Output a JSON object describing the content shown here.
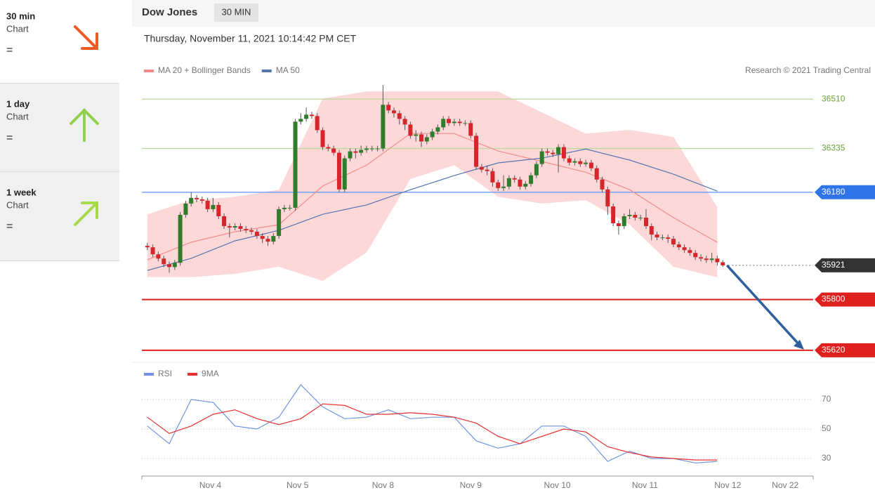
{
  "sidebar": [
    {
      "period": "30 min",
      "label": "Chart",
      "status": "="
    },
    {
      "period": "1 day",
      "label": "Chart",
      "status": "="
    },
    {
      "period": "1 week",
      "label": "Chart",
      "status": "="
    }
  ],
  "header": {
    "title": "Dow Jones",
    "badge": "30 MIN",
    "timestamp": "Thursday, November 11, 2021 10:14:42 PM CET"
  },
  "chart_data": [
    {
      "type": "candlestick",
      "credit": "Research © 2021 Trading Central",
      "xlim": [
        -1,
        121.5
      ],
      "ylim": [
        35580,
        36590
      ],
      "up_color": "#2f7d2b",
      "down_color": "#d7262b",
      "x": [
        0,
        1,
        2,
        3,
        4,
        5,
        6,
        7,
        8,
        9,
        10,
        11,
        12,
        13,
        14,
        15,
        16,
        17,
        18,
        19,
        20,
        21,
        22,
        23,
        24,
        25,
        26,
        27,
        28,
        29,
        30,
        31,
        32,
        33,
        34,
        35,
        36,
        37,
        38,
        39,
        40,
        41,
        42,
        43,
        44,
        45,
        46,
        47,
        48,
        49,
        50,
        51,
        52,
        53,
        54,
        55,
        56,
        57,
        58,
        59,
        60,
        61,
        62,
        63,
        64,
        65,
        66,
        67,
        68,
        69,
        70,
        71,
        72,
        73,
        74,
        75,
        76,
        77,
        78,
        79,
        80,
        81,
        82,
        83,
        84,
        85,
        86,
        87,
        88,
        89,
        90,
        91,
        92,
        93,
        94,
        95,
        96,
        97,
        98,
        99,
        100,
        101,
        102,
        103,
        104,
        105
      ],
      "open": [
        35990,
        35985,
        35960,
        35945,
        35925,
        35915,
        35930,
        36100,
        36140,
        36160,
        36155,
        36150,
        36120,
        36135,
        36095,
        36060,
        36055,
        36060,
        36050,
        36045,
        36040,
        36025,
        36015,
        36005,
        36025,
        36120,
        36125,
        36125,
        36430,
        36440,
        36455,
        36450,
        36400,
        36340,
        36335,
        36320,
        36190,
        36300,
        36325,
        36320,
        36330,
        36335,
        36335,
        36335,
        36490,
        36470,
        36460,
        36440,
        36420,
        36380,
        36385,
        36360,
        36375,
        36395,
        36410,
        36440,
        36425,
        36430,
        36425,
        36425,
        36380,
        36270,
        36260,
        36255,
        36215,
        36195,
        36200,
        36230,
        36225,
        36200,
        36210,
        36240,
        36280,
        36325,
        36320,
        36315,
        36340,
        36300,
        36285,
        36290,
        36280,
        36285,
        36265,
        36225,
        36190,
        36130,
        36070,
        36060,
        36095,
        36100,
        36090,
        36090,
        36060,
        36030,
        36020,
        36020,
        36015,
        35995,
        35985,
        35975,
        35965,
        35950,
        35945,
        35940,
        35945,
        35932
      ],
      "high": [
        36000,
        35995,
        35970,
        35955,
        35935,
        35940,
        36110,
        36150,
        36180,
        36170,
        36165,
        36160,
        36160,
        36145,
        36105,
        36070,
        36070,
        36070,
        36060,
        36055,
        36050,
        36035,
        36025,
        36035,
        36130,
        36135,
        36135,
        36440,
        36460,
        36480,
        36465,
        36460,
        36410,
        36350,
        36345,
        36330,
        36310,
        36335,
        36335,
        36345,
        36345,
        36345,
        36345,
        36560,
        36500,
        36480,
        36470,
        36450,
        36430,
        36400,
        36395,
        36385,
        36405,
        36420,
        36450,
        36450,
        36440,
        36440,
        36435,
        36435,
        36390,
        36280,
        36275,
        36265,
        36225,
        36240,
        36240,
        36240,
        36235,
        36220,
        36250,
        36290,
        36335,
        36335,
        36330,
        36350,
        36350,
        36310,
        36300,
        36300,
        36295,
        36295,
        36275,
        36235,
        36200,
        36140,
        36080,
        36105,
        36120,
        36110,
        36100,
        36120,
        36070,
        36040,
        36030,
        36030,
        36025,
        36005,
        35995,
        35985,
        35975,
        35960,
        35955,
        35965,
        35955,
        35940
      ],
      "low": [
        35975,
        35950,
        35935,
        35915,
        35895,
        35905,
        35920,
        36090,
        36130,
        36145,
        36140,
        36110,
        36110,
        36085,
        36050,
        36020,
        36045,
        36040,
        36035,
        36030,
        36015,
        36000,
        35990,
        35995,
        36015,
        36110,
        36115,
        36115,
        36420,
        36430,
        36440,
        36390,
        36330,
        36325,
        36310,
        36180,
        36180,
        36290,
        36300,
        36310,
        36320,
        36325,
        36325,
        36325,
        36460,
        36445,
        36420,
        36400,
        36370,
        36360,
        36340,
        36350,
        36365,
        36385,
        36400,
        36415,
        36415,
        36415,
        36415,
        36370,
        36260,
        36250,
        36240,
        36200,
        36185,
        36185,
        36190,
        36215,
        36190,
        36190,
        36200,
        36230,
        36270,
        36310,
        36305,
        36250,
        36290,
        36275,
        36275,
        36270,
        36270,
        36255,
        36215,
        36180,
        36100,
        36060,
        36030,
        36050,
        36085,
        36080,
        36080,
        36050,
        36010,
        36010,
        36010,
        36000,
        35985,
        35975,
        35965,
        35955,
        35940,
        35935,
        35930,
        35930,
        35920,
        35915
      ],
      "close": [
        35985,
        35960,
        35945,
        35925,
        35915,
        35930,
        36100,
        36140,
        36160,
        36155,
        36150,
        36120,
        36135,
        36095,
        36060,
        36055,
        36060,
        36050,
        36045,
        36040,
        36025,
        36015,
        36005,
        36025,
        36120,
        36125,
        36125,
        36430,
        36440,
        36455,
        36450,
        36400,
        36340,
        36335,
        36320,
        36190,
        36300,
        36325,
        36320,
        36330,
        36335,
        36335,
        36335,
        36490,
        36470,
        36460,
        36440,
        36420,
        36380,
        36385,
        36360,
        36375,
        36395,
        36410,
        36440,
        36425,
        36430,
        36425,
        36425,
        36380,
        36270,
        36260,
        36255,
        36215,
        36195,
        36200,
        36230,
        36225,
        36200,
        36210,
        36240,
        36280,
        36325,
        36320,
        36315,
        36340,
        36300,
        36285,
        36290,
        36280,
        36285,
        36265,
        36225,
        36190,
        36130,
        36070,
        36060,
        36095,
        36100,
        36090,
        36090,
        36060,
        36030,
        36020,
        36020,
        36015,
        35995,
        35985,
        35975,
        35965,
        35950,
        35945,
        35940,
        35945,
        35932,
        35921
      ],
      "overlays": [
        {
          "name": "MA 20 + Bollinger Bands",
          "color": "#f28b8b",
          "band_color": "#fdd8d8",
          "x": [
            0,
            8,
            16,
            24,
            32,
            40,
            48,
            56,
            64,
            72,
            80,
            88,
            96,
            104
          ],
          "values": [
            35941,
            36003,
            36040,
            36065,
            36202,
            36276,
            36388,
            36388,
            36326,
            36289,
            36251,
            36189,
            36090,
            36003
          ],
          "upper": [
            36102,
            36152,
            36164,
            36189,
            36512,
            36537,
            36537,
            36537,
            36537,
            36463,
            36388,
            36401,
            36376,
            36127
          ],
          "lower": [
            35879,
            35879,
            35891,
            35916,
            35866,
            35966,
            36227,
            36276,
            36164,
            36140,
            36152,
            36065,
            35916,
            35879
          ]
        },
        {
          "name": "MA 50",
          "color": "#5574b0",
          "x": [
            0,
            8,
            16,
            24,
            32,
            40,
            48,
            56,
            64,
            72,
            80,
            88,
            96,
            104
          ],
          "values": [
            35903,
            35946,
            36008,
            36045,
            36102,
            36135,
            36189,
            36239,
            36284,
            36301,
            36333,
            36294,
            36244,
            36184
          ]
        }
      ],
      "levels": [
        {
          "value": 36510,
          "color": "#b9d99a",
          "text_color": "#6aa63a",
          "tag": false,
          "dotted": false
        },
        {
          "value": 36335,
          "color": "#b9d99a",
          "text_color": "#6aa63a",
          "tag": false,
          "dotted": false
        },
        {
          "value": 36180,
          "color": "#6c9cf0",
          "text_color": "#ffffff",
          "tag_color": "#2f74e8",
          "tag": true,
          "dotted": false
        },
        {
          "value": 35921,
          "color": "#999999",
          "text_color": "#ffffff",
          "tag_color": "#333333",
          "tag": true,
          "dotted": true
        },
        {
          "value": 35800,
          "color": "#e0201c",
          "text_color": "#ffffff",
          "tag_color": "#e0201c",
          "tag": true,
          "dotted": false
        },
        {
          "value": 35620,
          "color": "#e0201c",
          "text_color": "#ffffff",
          "tag_color": "#e0201c",
          "tag": true,
          "dotted": false
        }
      ],
      "forecast_color": "#2f5f9f"
    },
    {
      "type": "line",
      "xlim": [
        -1,
        121.5
      ],
      "ylim": [
        20,
        93
      ],
      "yticks": [
        30,
        50,
        70
      ],
      "xticks": [
        {
          "value": 11.5,
          "label": "Nov 4"
        },
        {
          "value": 27.4,
          "label": "Nov 5"
        },
        {
          "value": 43,
          "label": "Nov 8"
        },
        {
          "value": 59,
          "label": "Nov 9"
        },
        {
          "value": 74.8,
          "label": "Nov 10"
        },
        {
          "value": 90.8,
          "label": "Nov 11"
        },
        {
          "value": 105.9,
          "label": "Nov 12"
        },
        {
          "value": 116.4,
          "label": "Nov 22"
        }
      ],
      "x": [
        0,
        4,
        8,
        12,
        16,
        20,
        24,
        28,
        32,
        36,
        40,
        44,
        48,
        52,
        56,
        60,
        64,
        68,
        72,
        76,
        80,
        84,
        88,
        92,
        96,
        100,
        104
      ],
      "series": [
        {
          "name": "RSI",
          "color": "#7094e4",
          "values": [
            52,
            40,
            70,
            68,
            52,
            50,
            58,
            80,
            65,
            57,
            58,
            63,
            57,
            58,
            58,
            42,
            37,
            40,
            52,
            52,
            45,
            28,
            35,
            30,
            30,
            27,
            28
          ]
        },
        {
          "name": "9MA",
          "color": "#e83030",
          "values": [
            58,
            47,
            52,
            60,
            63,
            57,
            53,
            57,
            67,
            66,
            60,
            60,
            61,
            60,
            58,
            54,
            45,
            40,
            45,
            50,
            48,
            38,
            34,
            31,
            30,
            29,
            29
          ]
        }
      ]
    }
  ]
}
